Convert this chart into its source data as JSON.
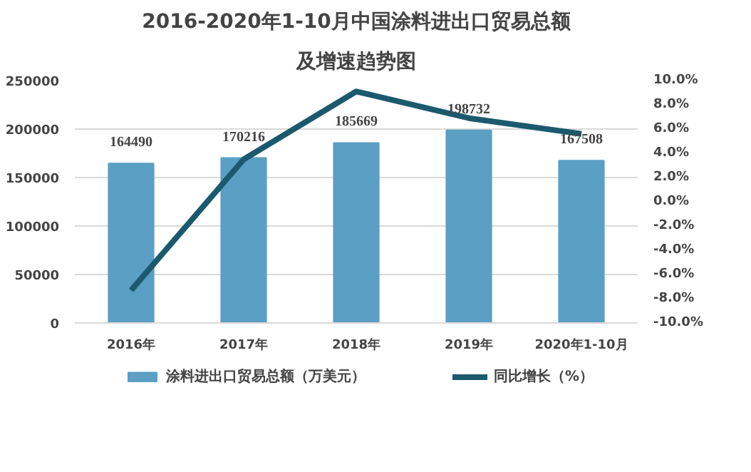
{
  "chart_data": {
    "type": "bar",
    "title": "2016-2020年1-10月中国涂料进出口贸易总额",
    "subtitle": "及增速趋势图",
    "categories": [
      "2016年",
      "2017年",
      "2018年",
      "2019年",
      "2020年1-10月"
    ],
    "series": [
      {
        "name": "涂料进出口贸易总额（万美元）",
        "color": "#5b9fc4",
        "values": [
          164490,
          170216,
          185669,
          198732,
          167508
        ],
        "value_labels": [
          "164490",
          "170216",
          "185669",
          "198732",
          "167508"
        ]
      },
      {
        "name": "同比增长（%）",
        "type": "line",
        "axis": "y2",
        "color": "#1b5a6e",
        "values": [
          -7.3,
          3.5,
          9.1,
          6.9,
          5.6
        ]
      }
    ],
    "ylim": [
      0,
      250000
    ],
    "yticks": [
      0,
      50000,
      100000,
      150000,
      200000,
      250000
    ],
    "y2lim": [
      -10,
      10
    ],
    "y2ticks": [
      {
        "value": -10,
        "label": "-10.0%"
      },
      {
        "value": -8,
        "label": "-8.0%"
      },
      {
        "value": -6,
        "label": "-6.0%"
      },
      {
        "value": -4,
        "label": "-4.0%"
      },
      {
        "value": -2,
        "label": "-2.0%"
      },
      {
        "value": 0,
        "label": "0.0%"
      },
      {
        "value": 2,
        "label": "2.0%"
      },
      {
        "value": 4,
        "label": "4.0%"
      },
      {
        "value": 6,
        "label": "6.0%"
      },
      {
        "value": 8,
        "label": "8.0%"
      },
      {
        "value": 10,
        "label": "10.0%"
      }
    ],
    "grid": "y",
    "legend": "bottom"
  }
}
